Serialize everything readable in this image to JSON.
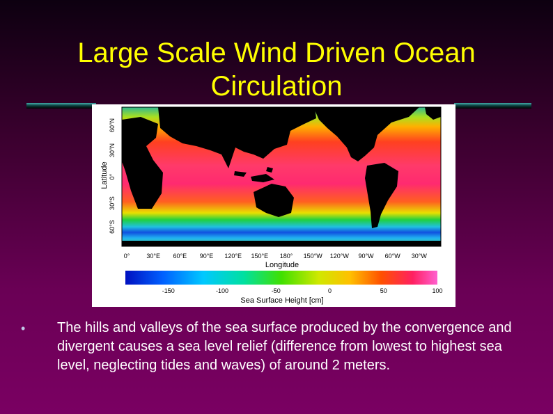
{
  "slide": {
    "title_line1": "Large Scale Wind Driven Ocean",
    "title_line2": "Circulation",
    "bullet": "The hills and valleys of the sea surface produced by the convergence and divergent causes a sea level relief (difference from lowest to highest sea level, neglecting tides and waves) of around 2 meters."
  },
  "figure": {
    "y_axis_label": "Latitude",
    "lat_ticks": [
      "60°N",
      "30°N",
      "0°",
      "30°S",
      "60°S"
    ],
    "x_axis_label": "Longitude",
    "lon_ticks": [
      "0°",
      "30°E",
      "60°E",
      "90°E",
      "120°E",
      "150°E",
      "180°",
      "150°W",
      "120°W",
      "90°W",
      "60°W",
      "30°W"
    ],
    "colorbar_label": "Sea Surface Height [cm]",
    "colorbar_ticks": [
      "-150",
      "-100",
      "-50",
      "0",
      "50",
      "100"
    ],
    "colorbar_range": [
      -190,
      100
    ]
  }
}
